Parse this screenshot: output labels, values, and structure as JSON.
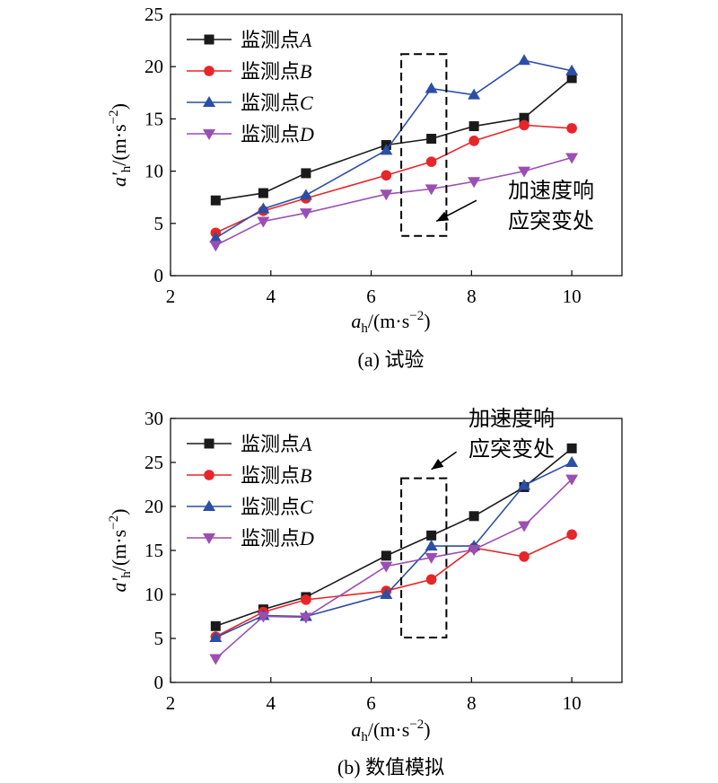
{
  "chart_data": [
    {
      "type": "line",
      "caption": "(a) 试验",
      "xlabel": "a_h/(m·s^-2)",
      "ylabel": "a'_h/(m·s^-2)",
      "xlim": [
        2,
        11
      ],
      "ylim": [
        0,
        25
      ],
      "xticks": [
        "2",
        "4",
        "6",
        "8",
        "10"
      ],
      "yticks": [
        "0",
        "5",
        "10",
        "15",
        "20",
        "25"
      ],
      "legend_position": "top-left",
      "annotation": {
        "line1": "加速度响",
        "line2": "应突变处"
      },
      "box": {
        "x": [
          6.6,
          7.5
        ],
        "y": [
          3.8,
          21.2
        ]
      },
      "arrow": {
        "from": [
          8.1,
          7.2
        ],
        "to": [
          7.3,
          5.2
        ]
      },
      "series": [
        {
          "name": "监测点A",
          "color": "#1a1a1a",
          "marker": "square",
          "x": [
            2.9,
            3.85,
            4.7,
            6.3,
            7.2,
            8.05,
            9.05,
            10.0
          ],
          "y": [
            7.2,
            7.9,
            9.8,
            12.5,
            13.1,
            14.3,
            15.1,
            18.9
          ]
        },
        {
          "name": "监测点B",
          "color": "#e8252a",
          "marker": "circle",
          "x": [
            2.9,
            3.85,
            4.7,
            6.3,
            7.2,
            8.05,
            9.05,
            10.0
          ],
          "y": [
            4.1,
            6.2,
            7.4,
            9.6,
            10.9,
            12.9,
            14.4,
            14.1
          ]
        },
        {
          "name": "监测点C",
          "color": "#2b4ea6",
          "marker": "triangle-up",
          "x": [
            2.9,
            3.85,
            4.7,
            6.3,
            7.2,
            8.05,
            9.05,
            10.0
          ],
          "y": [
            3.6,
            6.4,
            7.7,
            12.0,
            17.9,
            17.3,
            20.6,
            19.6
          ]
        },
        {
          "name": "监测点D",
          "color": "#9a4fb3",
          "marker": "triangle-down",
          "x": [
            2.9,
            3.85,
            4.7,
            6.3,
            7.2,
            8.05,
            9.05,
            10.0
          ],
          "y": [
            2.9,
            5.2,
            6.0,
            7.8,
            8.3,
            9.0,
            10.0,
            11.3
          ]
        }
      ]
    },
    {
      "type": "line",
      "caption": "(b) 数值模拟",
      "xlabel": "a_h/(m·s^-2)",
      "ylabel": "a'_h/(m·s^-2)",
      "xlim": [
        2,
        11
      ],
      "ylim": [
        0,
        30
      ],
      "xticks": [
        "2",
        "4",
        "6",
        "8",
        "10"
      ],
      "yticks": [
        "0",
        "5",
        "10",
        "15",
        "20",
        "25",
        "30"
      ],
      "legend_position": "top-left",
      "annotation": {
        "line1": "加速度响",
        "line2": "应突变处"
      },
      "box": {
        "x": [
          6.6,
          7.5
        ],
        "y": [
          5.1,
          23.2
        ]
      },
      "arrow": {
        "from": [
          7.7,
          26.2
        ],
        "to": [
          7.2,
          24.2
        ]
      },
      "series": [
        {
          "name": "监测点A",
          "color": "#1a1a1a",
          "marker": "square",
          "x": [
            2.9,
            3.85,
            4.7,
            6.3,
            7.2,
            8.05,
            9.05,
            10.0
          ],
          "y": [
            6.4,
            8.3,
            9.7,
            14.4,
            16.7,
            18.9,
            22.2,
            26.6
          ]
        },
        {
          "name": "监测点B",
          "color": "#e8252a",
          "marker": "circle",
          "x": [
            2.9,
            3.85,
            4.7,
            6.3,
            7.2,
            8.05,
            9.05,
            10.0
          ],
          "y": [
            5.2,
            8.0,
            9.4,
            10.4,
            11.7,
            15.3,
            14.3,
            16.8
          ]
        },
        {
          "name": "监测点C",
          "color": "#2b4ea6",
          "marker": "triangle-up",
          "x": [
            2.9,
            3.85,
            4.7,
            6.3,
            7.2,
            8.05,
            9.05,
            10.0
          ],
          "y": [
            5.1,
            7.6,
            7.5,
            10.0,
            15.5,
            15.5,
            22.4,
            25.0
          ]
        },
        {
          "name": "监测点D",
          "color": "#9a4fb3",
          "marker": "triangle-down",
          "x": [
            2.9,
            3.85,
            4.7,
            6.3,
            7.2,
            8.05,
            9.05,
            10.0
          ],
          "y": [
            2.7,
            7.5,
            7.4,
            13.2,
            14.2,
            15.1,
            17.8,
            23.1
          ]
        }
      ]
    }
  ]
}
